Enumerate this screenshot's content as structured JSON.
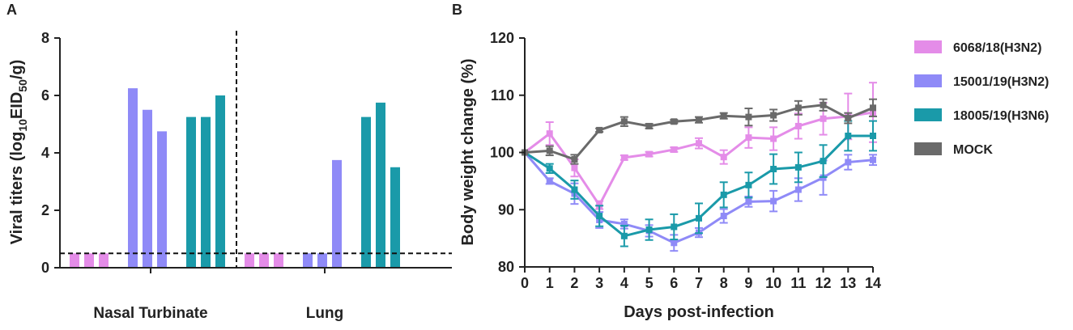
{
  "panels": {
    "a": "A",
    "b": "B"
  },
  "colors": {
    "pink": "#e48ce8",
    "blue": "#8f8af7",
    "teal": "#1a9aa9",
    "gray": "#6a6a6a",
    "axis": "#222222"
  },
  "chart_data": [
    {
      "type": "bar",
      "panel": "A",
      "ylabel_main": "Viral titers (log",
      "ylabel_sub1": "10",
      "ylabel_mid": "EID",
      "ylabel_sub2": "50",
      "ylabel_end": "/g)",
      "ylim": [
        0,
        8
      ],
      "yticks": [
        "0",
        "2",
        "4",
        "6",
        "8"
      ],
      "detection_limit": 0.5,
      "groups": [
        {
          "label": "Nasal Turbinate",
          "series": [
            {
              "name": "6068/18(H3N2)",
              "values": [
                0.5,
                0.5,
                0.5
              ]
            },
            {
              "name": "15001/19(H3N2)",
              "values": [
                6.25,
                5.5,
                4.75
              ]
            },
            {
              "name": "18005/19(H3N6)",
              "values": [
                5.25,
                5.25,
                6.0
              ]
            }
          ]
        },
        {
          "label": "Lung",
          "series": [
            {
              "name": "6068/18(H3N2)",
              "values": [
                0.5,
                0.5,
                0.5
              ]
            },
            {
              "name": "15001/19(H3N2)",
              "values": [
                0.5,
                0.5,
                3.75
              ]
            },
            {
              "name": "18005/19(H3N6)",
              "values": [
                5.25,
                5.75,
                3.5
              ]
            }
          ]
        }
      ]
    },
    {
      "type": "line",
      "panel": "B",
      "ylabel": "Body weight change (%)",
      "xlabel": "Days post-infection",
      "xlim": [
        0,
        14
      ],
      "ylim": [
        80,
        120
      ],
      "xticks": [
        "0",
        "1",
        "2",
        "3",
        "4",
        "5",
        "6",
        "7",
        "8",
        "9",
        "10",
        "11",
        "12",
        "13",
        "14"
      ],
      "yticks": [
        "80",
        "90",
        "100",
        "110",
        "120"
      ],
      "x": [
        0,
        1,
        2,
        3,
        4,
        5,
        6,
        7,
        8,
        9,
        10,
        11,
        12,
        13,
        14
      ],
      "series": [
        {
          "name": "6068/18(H3N2)",
          "color": "#e48ce8",
          "values": [
            100,
            103.3,
            97.3,
            90.8,
            99.1,
            99.7,
            100.5,
            101.6,
            99.2,
            102.6,
            102.4,
            104.6,
            105.9,
            106.3,
            107.0
          ],
          "errors": [
            0,
            2.0,
            1.5,
            0.7,
            0.4,
            0.4,
            0.4,
            0.9,
            1.2,
            1.8,
            2.0,
            2.2,
            2.8,
            4.0,
            5.2
          ]
        },
        {
          "name": "15001/19(H3N2)",
          "color": "#8f8af7",
          "values": [
            100,
            95.0,
            92.8,
            88.2,
            87.5,
            86.3,
            84.2,
            86.0,
            88.9,
            91.4,
            91.5,
            93.5,
            95.6,
            98.3,
            98.7
          ],
          "errors": [
            0,
            0.5,
            1.8,
            1.4,
            0.8,
            1.0,
            1.4,
            0.8,
            1.2,
            0.9,
            1.8,
            2.0,
            3.0,
            1.3,
            0.9
          ]
        },
        {
          "name": "18005/19(H3N6)",
          "color": "#1a9aa9",
          "values": [
            100,
            97.2,
            93.5,
            88.9,
            85.4,
            86.5,
            87.0,
            88.5,
            92.6,
            94.3,
            97.1,
            97.4,
            98.5,
            102.9,
            102.9
          ],
          "errors": [
            0,
            0.8,
            1.6,
            1.8,
            1.8,
            1.8,
            2.2,
            2.6,
            2.2,
            2.2,
            2.6,
            2.6,
            2.8,
            2.6,
            2.6
          ]
        },
        {
          "name": "MOCK",
          "color": "#6a6a6a",
          "values": [
            100,
            100.3,
            98.8,
            103.9,
            105.4,
            104.6,
            105.4,
            105.7,
            106.4,
            106.2,
            106.5,
            107.8,
            108.3,
            106.0,
            107.8
          ],
          "errors": [
            0,
            0.8,
            0.8,
            0.3,
            0.8,
            0.4,
            0.3,
            0.5,
            0.5,
            1.5,
            1.0,
            1.2,
            1.0,
            0.9,
            1.5
          ]
        }
      ],
      "legend_position": "right"
    }
  ]
}
